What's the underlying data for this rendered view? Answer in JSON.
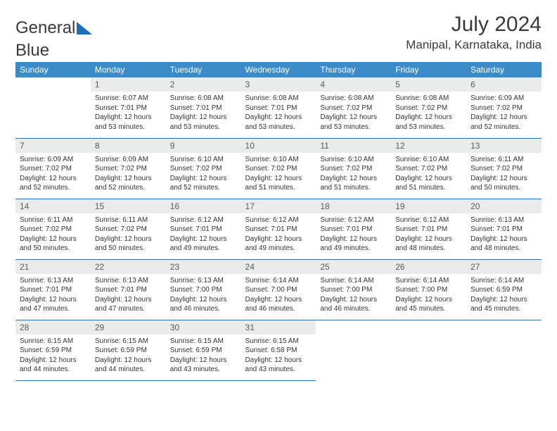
{
  "logo": {
    "text_a": "General",
    "text_b": "Blue",
    "tri_color": "#1f6db4"
  },
  "header": {
    "month": "July 2024",
    "location": "Manipal, Karnataka, India"
  },
  "colors": {
    "header_bg": "#3b8bc9",
    "header_fg": "#ffffff",
    "daynum_bg": "#e9eceb",
    "row_border": "#2f6fa5"
  },
  "weekdays": [
    "Sunday",
    "Monday",
    "Tuesday",
    "Wednesday",
    "Thursday",
    "Friday",
    "Saturday"
  ],
  "weeks": [
    [
      null,
      {
        "n": "1",
        "sr": "Sunrise: 6:07 AM",
        "ss": "Sunset: 7:01 PM",
        "d1": "Daylight: 12 hours",
        "d2": "and 53 minutes."
      },
      {
        "n": "2",
        "sr": "Sunrise: 6:08 AM",
        "ss": "Sunset: 7:01 PM",
        "d1": "Daylight: 12 hours",
        "d2": "and 53 minutes."
      },
      {
        "n": "3",
        "sr": "Sunrise: 6:08 AM",
        "ss": "Sunset: 7:01 PM",
        "d1": "Daylight: 12 hours",
        "d2": "and 53 minutes."
      },
      {
        "n": "4",
        "sr": "Sunrise: 6:08 AM",
        "ss": "Sunset: 7:02 PM",
        "d1": "Daylight: 12 hours",
        "d2": "and 53 minutes."
      },
      {
        "n": "5",
        "sr": "Sunrise: 6:08 AM",
        "ss": "Sunset: 7:02 PM",
        "d1": "Daylight: 12 hours",
        "d2": "and 53 minutes."
      },
      {
        "n": "6",
        "sr": "Sunrise: 6:09 AM",
        "ss": "Sunset: 7:02 PM",
        "d1": "Daylight: 12 hours",
        "d2": "and 52 minutes."
      }
    ],
    [
      {
        "n": "7",
        "sr": "Sunrise: 6:09 AM",
        "ss": "Sunset: 7:02 PM",
        "d1": "Daylight: 12 hours",
        "d2": "and 52 minutes."
      },
      {
        "n": "8",
        "sr": "Sunrise: 6:09 AM",
        "ss": "Sunset: 7:02 PM",
        "d1": "Daylight: 12 hours",
        "d2": "and 52 minutes."
      },
      {
        "n": "9",
        "sr": "Sunrise: 6:10 AM",
        "ss": "Sunset: 7:02 PM",
        "d1": "Daylight: 12 hours",
        "d2": "and 52 minutes."
      },
      {
        "n": "10",
        "sr": "Sunrise: 6:10 AM",
        "ss": "Sunset: 7:02 PM",
        "d1": "Daylight: 12 hours",
        "d2": "and 51 minutes."
      },
      {
        "n": "11",
        "sr": "Sunrise: 6:10 AM",
        "ss": "Sunset: 7:02 PM",
        "d1": "Daylight: 12 hours",
        "d2": "and 51 minutes."
      },
      {
        "n": "12",
        "sr": "Sunrise: 6:10 AM",
        "ss": "Sunset: 7:02 PM",
        "d1": "Daylight: 12 hours",
        "d2": "and 51 minutes."
      },
      {
        "n": "13",
        "sr": "Sunrise: 6:11 AM",
        "ss": "Sunset: 7:02 PM",
        "d1": "Daylight: 12 hours",
        "d2": "and 50 minutes."
      }
    ],
    [
      {
        "n": "14",
        "sr": "Sunrise: 6:11 AM",
        "ss": "Sunset: 7:02 PM",
        "d1": "Daylight: 12 hours",
        "d2": "and 50 minutes."
      },
      {
        "n": "15",
        "sr": "Sunrise: 6:11 AM",
        "ss": "Sunset: 7:02 PM",
        "d1": "Daylight: 12 hours",
        "d2": "and 50 minutes."
      },
      {
        "n": "16",
        "sr": "Sunrise: 6:12 AM",
        "ss": "Sunset: 7:01 PM",
        "d1": "Daylight: 12 hours",
        "d2": "and 49 minutes."
      },
      {
        "n": "17",
        "sr": "Sunrise: 6:12 AM",
        "ss": "Sunset: 7:01 PM",
        "d1": "Daylight: 12 hours",
        "d2": "and 49 minutes."
      },
      {
        "n": "18",
        "sr": "Sunrise: 6:12 AM",
        "ss": "Sunset: 7:01 PM",
        "d1": "Daylight: 12 hours",
        "d2": "and 49 minutes."
      },
      {
        "n": "19",
        "sr": "Sunrise: 6:12 AM",
        "ss": "Sunset: 7:01 PM",
        "d1": "Daylight: 12 hours",
        "d2": "and 48 minutes."
      },
      {
        "n": "20",
        "sr": "Sunrise: 6:13 AM",
        "ss": "Sunset: 7:01 PM",
        "d1": "Daylight: 12 hours",
        "d2": "and 48 minutes."
      }
    ],
    [
      {
        "n": "21",
        "sr": "Sunrise: 6:13 AM",
        "ss": "Sunset: 7:01 PM",
        "d1": "Daylight: 12 hours",
        "d2": "and 47 minutes."
      },
      {
        "n": "22",
        "sr": "Sunrise: 6:13 AM",
        "ss": "Sunset: 7:01 PM",
        "d1": "Daylight: 12 hours",
        "d2": "and 47 minutes."
      },
      {
        "n": "23",
        "sr": "Sunrise: 6:13 AM",
        "ss": "Sunset: 7:00 PM",
        "d1": "Daylight: 12 hours",
        "d2": "and 46 minutes."
      },
      {
        "n": "24",
        "sr": "Sunrise: 6:14 AM",
        "ss": "Sunset: 7:00 PM",
        "d1": "Daylight: 12 hours",
        "d2": "and 46 minutes."
      },
      {
        "n": "25",
        "sr": "Sunrise: 6:14 AM",
        "ss": "Sunset: 7:00 PM",
        "d1": "Daylight: 12 hours",
        "d2": "and 46 minutes."
      },
      {
        "n": "26",
        "sr": "Sunrise: 6:14 AM",
        "ss": "Sunset: 7:00 PM",
        "d1": "Daylight: 12 hours",
        "d2": "and 45 minutes."
      },
      {
        "n": "27",
        "sr": "Sunrise: 6:14 AM",
        "ss": "Sunset: 6:59 PM",
        "d1": "Daylight: 12 hours",
        "d2": "and 45 minutes."
      }
    ],
    [
      {
        "n": "28",
        "sr": "Sunrise: 6:15 AM",
        "ss": "Sunset: 6:59 PM",
        "d1": "Daylight: 12 hours",
        "d2": "and 44 minutes."
      },
      {
        "n": "29",
        "sr": "Sunrise: 6:15 AM",
        "ss": "Sunset: 6:59 PM",
        "d1": "Daylight: 12 hours",
        "d2": "and 44 minutes."
      },
      {
        "n": "30",
        "sr": "Sunrise: 6:15 AM",
        "ss": "Sunset: 6:59 PM",
        "d1": "Daylight: 12 hours",
        "d2": "and 43 minutes."
      },
      {
        "n": "31",
        "sr": "Sunrise: 6:15 AM",
        "ss": "Sunset: 6:58 PM",
        "d1": "Daylight: 12 hours",
        "d2": "and 43 minutes."
      },
      null,
      null,
      null
    ]
  ]
}
